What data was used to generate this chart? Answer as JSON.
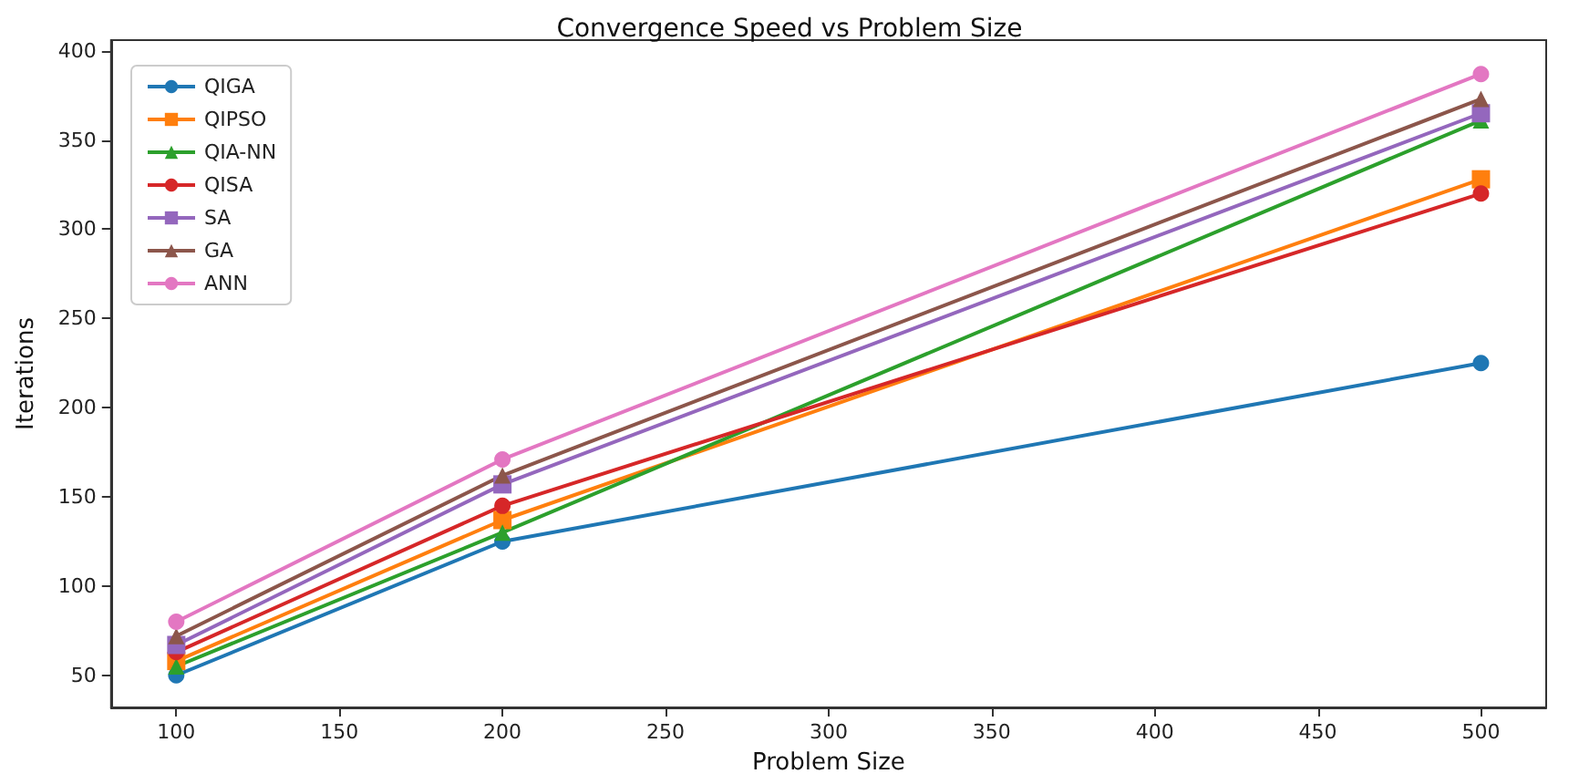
{
  "chart_data": {
    "type": "line",
    "title": "Convergence Speed vs Problem Size",
    "xlabel": "Problem Size",
    "ylabel": "Iterations",
    "x": [
      100,
      200,
      500
    ],
    "series": [
      {
        "name": "QIGA",
        "color": "#1f77b4",
        "marker": "circle",
        "values": [
          50,
          125,
          225
        ]
      },
      {
        "name": "QIPSO",
        "color": "#ff7f0e",
        "marker": "square",
        "values": [
          58,
          137,
          328
        ]
      },
      {
        "name": "QIA-NN",
        "color": "#2ca02c",
        "marker": "triangle",
        "values": [
          55,
          130,
          361
        ]
      },
      {
        "name": "QISA",
        "color": "#d62728",
        "marker": "circle",
        "values": [
          63,
          145,
          320
        ]
      },
      {
        "name": "SA",
        "color": "#9467bd",
        "marker": "square",
        "values": [
          67,
          157,
          365
        ]
      },
      {
        "name": "GA",
        "color": "#8c564b",
        "marker": "triangle",
        "values": [
          72,
          162,
          373
        ]
      },
      {
        "name": "ANN",
        "color": "#e377c2",
        "marker": "circle",
        "values": [
          80,
          171,
          387
        ]
      }
    ],
    "xlim": [
      80,
      520
    ],
    "xticks": [
      100,
      150,
      200,
      250,
      300,
      350,
      400,
      450,
      500
    ],
    "ylim": [
      32,
      406
    ],
    "yticks": [
      50,
      100,
      150,
      200,
      250,
      300,
      350,
      400
    ],
    "grid": false,
    "legend": "top left",
    "line_style": "solid"
  }
}
